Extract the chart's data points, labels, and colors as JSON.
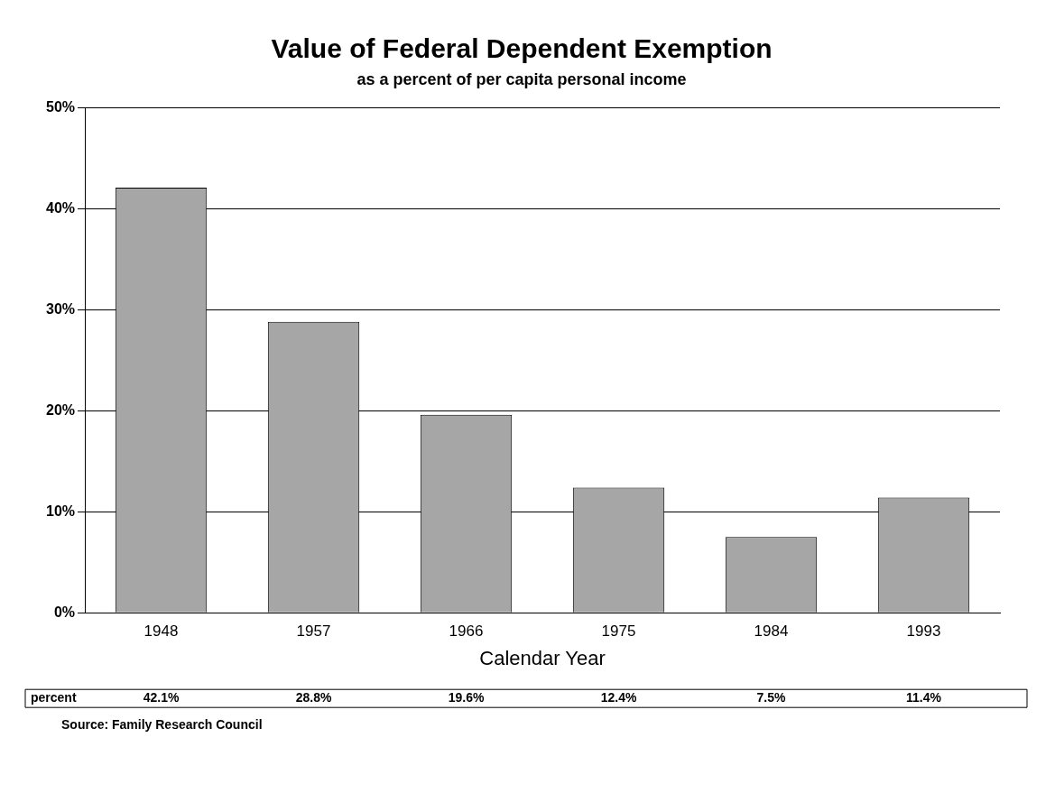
{
  "chart_data": {
    "type": "bar",
    "title": "Value of Federal Dependent Exemption",
    "subtitle": "as a percent of per capita personal income",
    "xlabel": "Calendar Year",
    "categories": [
      "1948",
      "1957",
      "1966",
      "1975",
      "1984",
      "1993"
    ],
    "values": [
      42.1,
      28.8,
      19.6,
      12.4,
      7.5,
      11.4
    ],
    "color": "#a6a6a6",
    "value_labels": [
      "42.1%",
      "28.8%",
      "19.6%",
      "12.4%",
      "7.5%",
      "11.4%"
    ],
    "ylim": [
      0,
      50
    ],
    "yticks": [
      {
        "value": 0,
        "label": "0%"
      },
      {
        "value": 10,
        "label": "10%"
      },
      {
        "value": 20,
        "label": "20%"
      },
      {
        "value": 30,
        "label": "30%"
      },
      {
        "value": 40,
        "label": "40%"
      },
      {
        "value": 50,
        "label": "50%"
      }
    ],
    "grid": "y",
    "legend": false,
    "annotations": [
      "percent",
      "Source: Family Research Council"
    ]
  }
}
